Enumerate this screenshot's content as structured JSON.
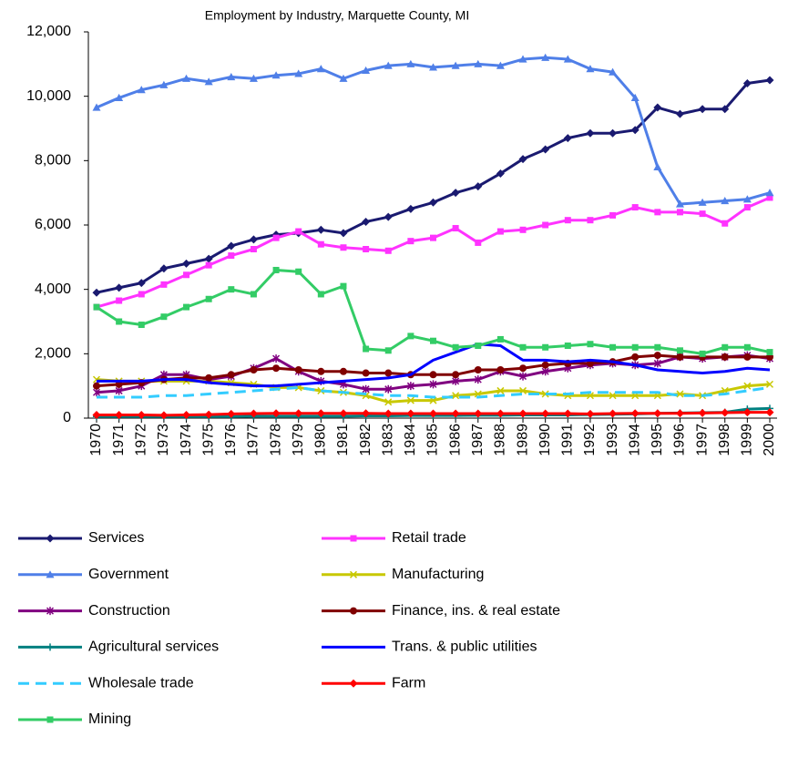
{
  "chart_data": {
    "type": "line",
    "title": "Employment by Industry, Marquette County, MI",
    "x": [
      1970,
      1971,
      1972,
      1973,
      1974,
      1975,
      1976,
      1977,
      1978,
      1979,
      1980,
      1981,
      1982,
      1983,
      1984,
      1985,
      1986,
      1987,
      1988,
      1989,
      1990,
      1991,
      1992,
      1993,
      1994,
      1995,
      1996,
      1997,
      1998,
      1999,
      2000
    ],
    "ylim": [
      0,
      12000
    ],
    "yticks": [
      0,
      {
        "value": 2000,
        "label": "2,000"
      },
      {
        "value": 4000,
        "label": "4,000"
      },
      {
        "value": 6000,
        "label": "6,000"
      },
      {
        "value": 8000,
        "label": "8,000"
      },
      {
        "value": 10000,
        "label": "10,000"
      },
      {
        "value": 12000,
        "label": "12,000"
      }
    ],
    "grid": false,
    "series": [
      {
        "name": "Services",
        "color": "#1a1a70",
        "marker": "diamond",
        "values": [
          3900,
          4050,
          4200,
          4650,
          4800,
          4950,
          5350,
          5550,
          5700,
          5750,
          5850,
          5750,
          6100,
          6250,
          6500,
          6700,
          7000,
          7200,
          7600,
          8050,
          8350,
          8700,
          8850,
          8850,
          8950,
          9650,
          9450,
          9600,
          9600,
          10400,
          10500
        ]
      },
      {
        "name": "Retail trade",
        "color": "#ff33ff",
        "marker": "square",
        "values": [
          3450,
          3650,
          3850,
          4150,
          4450,
          4750,
          5050,
          5250,
          5600,
          5800,
          5400,
          5300,
          5250,
          5200,
          5500,
          5600,
          5900,
          5450,
          5800,
          5850,
          6000,
          6150,
          6150,
          6300,
          6550,
          6400,
          6400,
          6350,
          6050,
          6550,
          6850
        ]
      },
      {
        "name": "Government",
        "color": "#4f7fe8",
        "marker": "triangle",
        "values": [
          9650,
          9950,
          10200,
          10350,
          10550,
          10450,
          10600,
          10550,
          10650,
          10700,
          10850,
          10550,
          10800,
          10950,
          11000,
          10900,
          10950,
          11000,
          10950,
          11150,
          11200,
          11150,
          10850,
          10750,
          9950,
          7800,
          6650,
          6700,
          6750,
          6800,
          7000
        ]
      },
      {
        "name": "Manufacturing",
        "color": "#c8c800",
        "marker": "x",
        "values": [
          1200,
          1150,
          1150,
          1150,
          1150,
          1150,
          1100,
          1050,
          950,
          950,
          850,
          800,
          700,
          500,
          550,
          550,
          700,
          750,
          850,
          850,
          750,
          700,
          700,
          700,
          700,
          700,
          750,
          700,
          850,
          1000,
          1050
        ]
      },
      {
        "name": "Construction",
        "color": "#800080",
        "marker": "star",
        "values": [
          800,
          850,
          1000,
          1350,
          1350,
          1200,
          1300,
          1550,
          1850,
          1450,
          1150,
          1050,
          900,
          900,
          1000,
          1050,
          1150,
          1200,
          1450,
          1300,
          1450,
          1550,
          1650,
          1700,
          1650,
          1700,
          1900,
          1850,
          1900,
          1950,
          1850
        ]
      },
      {
        "name": "Finance, ins. & real estate",
        "color": "#800000",
        "marker": "circle",
        "values": [
          1000,
          1050,
          1100,
          1200,
          1250,
          1250,
          1350,
          1500,
          1550,
          1500,
          1450,
          1450,
          1400,
          1400,
          1350,
          1350,
          1350,
          1500,
          1500,
          1550,
          1650,
          1700,
          1700,
          1750,
          1900,
          1950,
          1900,
          1900,
          1900,
          1900,
          1900
        ]
      },
      {
        "name": "Agricultural services",
        "color": "#008080",
        "marker": "plus",
        "values": [
          50,
          50,
          50,
          50,
          50,
          50,
          50,
          60,
          60,
          60,
          60,
          60,
          70,
          70,
          80,
          80,
          80,
          90,
          90,
          100,
          100,
          100,
          110,
          120,
          130,
          150,
          160,
          170,
          180,
          280,
          300
        ]
      },
      {
        "name": "Trans. & public utilities",
        "color": "#0000ff",
        "marker": "none",
        "values": [
          1150,
          1150,
          1150,
          1200,
          1200,
          1100,
          1050,
          1000,
          1000,
          1050,
          1100,
          1150,
          1200,
          1250,
          1350,
          1800,
          2050,
          2300,
          2250,
          1800,
          1800,
          1750,
          1800,
          1750,
          1650,
          1500,
          1450,
          1400,
          1450,
          1550,
          1500
        ]
      },
      {
        "name": "Wholesale trade",
        "color": "#33ccff",
        "marker": "none",
        "dashed": true,
        "values": [
          650,
          650,
          650,
          700,
          700,
          750,
          800,
          850,
          900,
          950,
          850,
          800,
          750,
          700,
          700,
          650,
          650,
          650,
          700,
          750,
          750,
          750,
          800,
          800,
          800,
          800,
          700,
          700,
          750,
          850,
          950
        ]
      },
      {
        "name": "Farm",
        "color": "#ff0000",
        "marker": "diamond",
        "values": [
          100,
          100,
          100,
          90,
          100,
          110,
          130,
          140,
          150,
          150,
          150,
          150,
          150,
          140,
          140,
          140,
          140,
          140,
          140,
          140,
          140,
          140,
          130,
          140,
          150,
          150,
          150,
          160,
          170,
          180,
          180
        ]
      },
      {
        "name": "Mining",
        "color": "#33cc66",
        "marker": "square",
        "values": [
          3450,
          3000,
          2900,
          3150,
          3450,
          3700,
          4000,
          3850,
          4600,
          4550,
          3850,
          4100,
          2150,
          2100,
          2550,
          2400,
          2200,
          2250,
          2450,
          2200,
          2200,
          2250,
          2300,
          2200,
          2200,
          2200,
          2100,
          2000,
          2200,
          2200,
          2050
        ]
      }
    ]
  }
}
